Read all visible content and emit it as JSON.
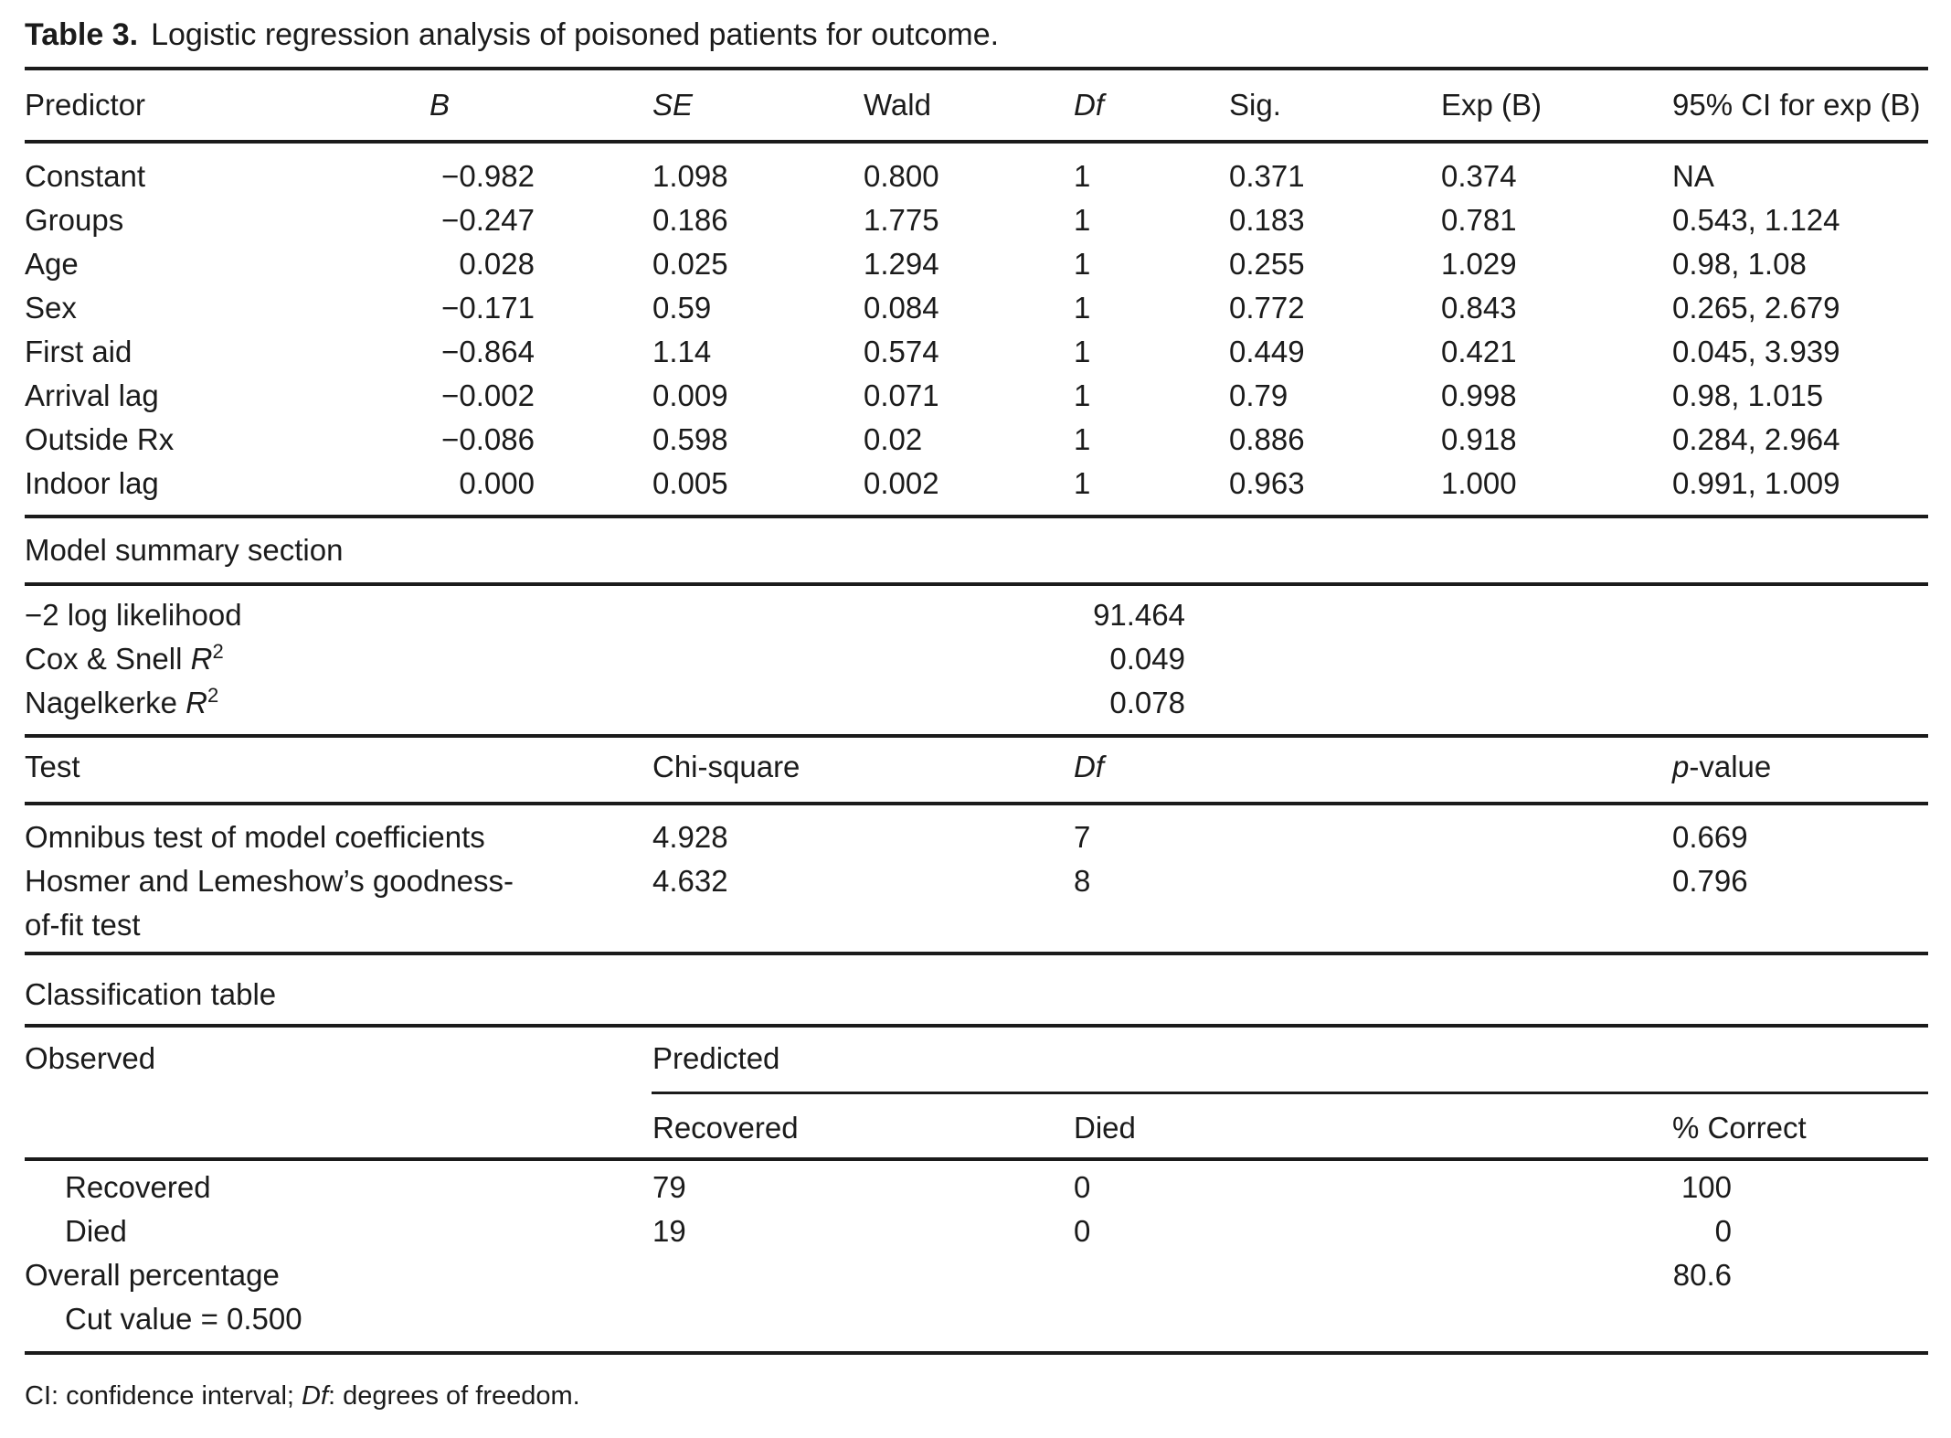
{
  "table": {
    "label": "Table 3.",
    "caption": "Logistic regression analysis of poisoned patients for outcome.",
    "regression": {
      "headers": {
        "predictor": "Predictor",
        "b": "B",
        "se": "SE",
        "wald": "Wald",
        "df": "Df",
        "sig": "Sig.",
        "exp_b": "Exp (B)",
        "ci": "95% CI for exp (B)"
      },
      "rows": [
        {
          "predictor": "Constant",
          "b": "−0.982",
          "se": "1.098",
          "wald": "0.800",
          "df": "1",
          "sig": "0.371",
          "exp_b": "0.374",
          "ci": "NA"
        },
        {
          "predictor": "Groups",
          "b": "−0.247",
          "se": "0.186",
          "wald": "1.775",
          "df": "1",
          "sig": "0.183",
          "exp_b": "0.781",
          "ci": "0.543, 1.124"
        },
        {
          "predictor": "Age",
          "b": "0.028",
          "se": "0.025",
          "wald": "1.294",
          "df": "1",
          "sig": "0.255",
          "exp_b": "1.029",
          "ci": "0.98, 1.08"
        },
        {
          "predictor": "Sex",
          "b": "−0.171",
          "se": "0.59",
          "wald": "0.084",
          "df": "1",
          "sig": "0.772",
          "exp_b": "0.843",
          "ci": "0.265, 2.679"
        },
        {
          "predictor": "First aid",
          "b": "−0.864",
          "se": "1.14",
          "wald": "0.574",
          "df": "1",
          "sig": "0.449",
          "exp_b": "0.421",
          "ci": "0.045, 3.939"
        },
        {
          "predictor": "Arrival lag",
          "b": "−0.002",
          "se": "0.009",
          "wald": "0.071",
          "df": "1",
          "sig": "0.79",
          "exp_b": "0.998",
          "ci": "0.98, 1.015"
        },
        {
          "predictor": "Outside Rx",
          "b": "−0.086",
          "se": "0.598",
          "wald": "0.02",
          "df": "1",
          "sig": "0.886",
          "exp_b": "0.918",
          "ci": "0.284, 2.964"
        },
        {
          "predictor": "Indoor lag",
          "b": "0.000",
          "se": "0.005",
          "wald": "0.002",
          "df": "1",
          "sig": "0.963",
          "exp_b": "1.000",
          "ci": "0.991, 1.009"
        }
      ]
    },
    "model_summary": {
      "heading": "Model summary section",
      "rows": [
        {
          "label": "−2 log likelihood",
          "symbol": "",
          "sup": "",
          "value": "91.464"
        },
        {
          "label": "Cox & Snell ",
          "symbol": "R",
          "sup": "2",
          "value": "0.049"
        },
        {
          "label": "Nagelkerke ",
          "symbol": "R",
          "sup": "2",
          "value": "0.078"
        }
      ]
    },
    "tests": {
      "headers": {
        "test": "Test",
        "chi_square": "Chi-square",
        "df": "Df",
        "p_italic": "p",
        "p_rest": "-value"
      },
      "rows": [
        {
          "test": "Omnibus test of model coefficients",
          "chi_square": "4.928",
          "df": "7",
          "p": "0.669"
        },
        {
          "test": "Hosmer and Lemeshow’s goodness-of-fit test",
          "chi_square": "4.632",
          "df": "8",
          "p": "0.796"
        }
      ]
    },
    "classification": {
      "heading": "Classification table",
      "observed": "Observed",
      "predicted": "Predicted",
      "headers": {
        "recovered": "Recovered",
        "died": "Died",
        "pct": "% Correct"
      },
      "rows": [
        {
          "label": "Recovered",
          "recovered": "79",
          "died": "0",
          "pct": "100"
        },
        {
          "label": "Died",
          "recovered": "19",
          "died": "0",
          "pct": "0"
        },
        {
          "label": "Overall percentage",
          "recovered": "",
          "died": "",
          "pct": "80.6"
        },
        {
          "label": "Cut value = 0.500",
          "recovered": "",
          "died": "",
          "pct": ""
        }
      ]
    },
    "footnote": {
      "pre": "CI: confidence interval; ",
      "df_italic": "Df",
      "post": ": degrees of freedom."
    }
  }
}
